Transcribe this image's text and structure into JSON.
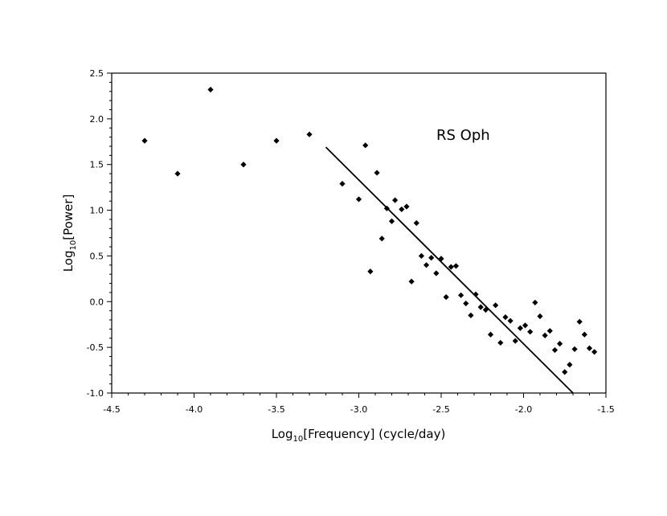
{
  "chart_data": {
    "type": "scatter",
    "annotation": "RS Oph",
    "xlabel": {
      "prefix": "Log",
      "subscript": "10",
      "suffix": "[Frequency] (cycle/day)"
    },
    "ylabel": {
      "prefix": "Log",
      "subscript": "10",
      "suffix": "[Power]"
    },
    "xlim": [
      -4.5,
      -1.5
    ],
    "ylim": [
      -1.0,
      2.5
    ],
    "xticks": [
      -4.5,
      -4.0,
      -3.5,
      -3.0,
      -2.5,
      -2.0,
      -1.5
    ],
    "xtick_labels": [
      "-4.5",
      "-4.0",
      "-3.5",
      "-3.0",
      "-2.5",
      "-2.0",
      "-1.5"
    ],
    "yticks": [
      -1.0,
      -0.5,
      0.0,
      0.5,
      1.0,
      1.5,
      2.0,
      2.5
    ],
    "ytick_labels": [
      "-1.0",
      "-0.5",
      "0.0",
      "0.5",
      "1.0",
      "1.5",
      "2.0",
      "2.5"
    ],
    "grid": false,
    "marker_color": "#000000",
    "points": [
      {
        "x": -4.3,
        "y": 1.76
      },
      {
        "x": -4.1,
        "y": 1.4
      },
      {
        "x": -3.9,
        "y": 2.32
      },
      {
        "x": -3.7,
        "y": 1.5
      },
      {
        "x": -3.5,
        "y": 1.76
      },
      {
        "x": -3.3,
        "y": 1.83
      },
      {
        "x": -3.1,
        "y": 1.29
      },
      {
        "x": -3.0,
        "y": 1.12
      },
      {
        "x": -2.96,
        "y": 1.71
      },
      {
        "x": -2.93,
        "y": 0.33
      },
      {
        "x": -2.89,
        "y": 1.41
      },
      {
        "x": -2.86,
        "y": 0.69
      },
      {
        "x": -2.83,
        "y": 1.02
      },
      {
        "x": -2.8,
        "y": 0.88
      },
      {
        "x": -2.78,
        "y": 1.11
      },
      {
        "x": -2.74,
        "y": 1.01
      },
      {
        "x": -2.71,
        "y": 1.04
      },
      {
        "x": -2.68,
        "y": 0.22
      },
      {
        "x": -2.65,
        "y": 0.86
      },
      {
        "x": -2.62,
        "y": 0.5
      },
      {
        "x": -2.59,
        "y": 0.4
      },
      {
        "x": -2.56,
        "y": 0.48
      },
      {
        "x": -2.53,
        "y": 0.31
      },
      {
        "x": -2.5,
        "y": 0.47
      },
      {
        "x": -2.47,
        "y": 0.05
      },
      {
        "x": -2.44,
        "y": 0.38
      },
      {
        "x": -2.41,
        "y": 0.39
      },
      {
        "x": -2.38,
        "y": 0.07
      },
      {
        "x": -2.35,
        "y": -0.02
      },
      {
        "x": -2.32,
        "y": -0.15
      },
      {
        "x": -2.29,
        "y": 0.08
      },
      {
        "x": -2.26,
        "y": -0.06
      },
      {
        "x": -2.23,
        "y": -0.09
      },
      {
        "x": -2.2,
        "y": -0.36
      },
      {
        "x": -2.17,
        "y": -0.04
      },
      {
        "x": -2.14,
        "y": -0.45
      },
      {
        "x": -2.11,
        "y": -0.17
      },
      {
        "x": -2.08,
        "y": -0.21
      },
      {
        "x": -2.05,
        "y": -0.43
      },
      {
        "x": -2.02,
        "y": -0.29
      },
      {
        "x": -1.99,
        "y": -0.26
      },
      {
        "x": -1.96,
        "y": -0.33
      },
      {
        "x": -1.93,
        "y": -0.01
      },
      {
        "x": -1.9,
        "y": -0.16
      },
      {
        "x": -1.87,
        "y": -0.37
      },
      {
        "x": -1.84,
        "y": -0.32
      },
      {
        "x": -1.81,
        "y": -0.53
      },
      {
        "x": -1.78,
        "y": -0.46
      },
      {
        "x": -1.75,
        "y": -0.77
      },
      {
        "x": -1.72,
        "y": -0.69
      },
      {
        "x": -1.69,
        "y": -0.52
      },
      {
        "x": -1.66,
        "y": -0.22
      },
      {
        "x": -1.63,
        "y": -0.36
      },
      {
        "x": -1.6,
        "y": -0.51
      },
      {
        "x": -1.57,
        "y": -0.55
      }
    ],
    "fit_line": {
      "x1": -3.2,
      "y1": 1.69,
      "x2": -1.7,
      "y2": -1.0
    }
  }
}
